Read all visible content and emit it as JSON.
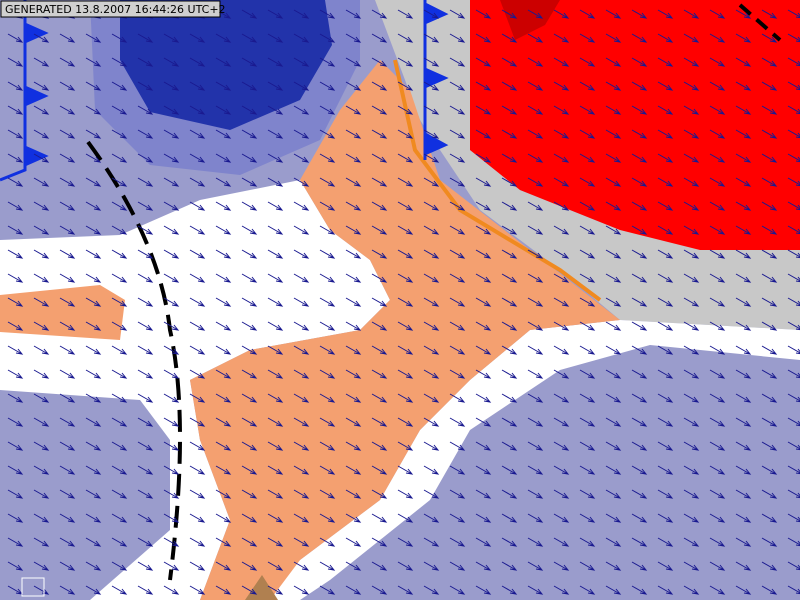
{
  "header": {
    "generated": "GENERATED 13.8.2007 16:44:26 UTC+2"
  }
}
